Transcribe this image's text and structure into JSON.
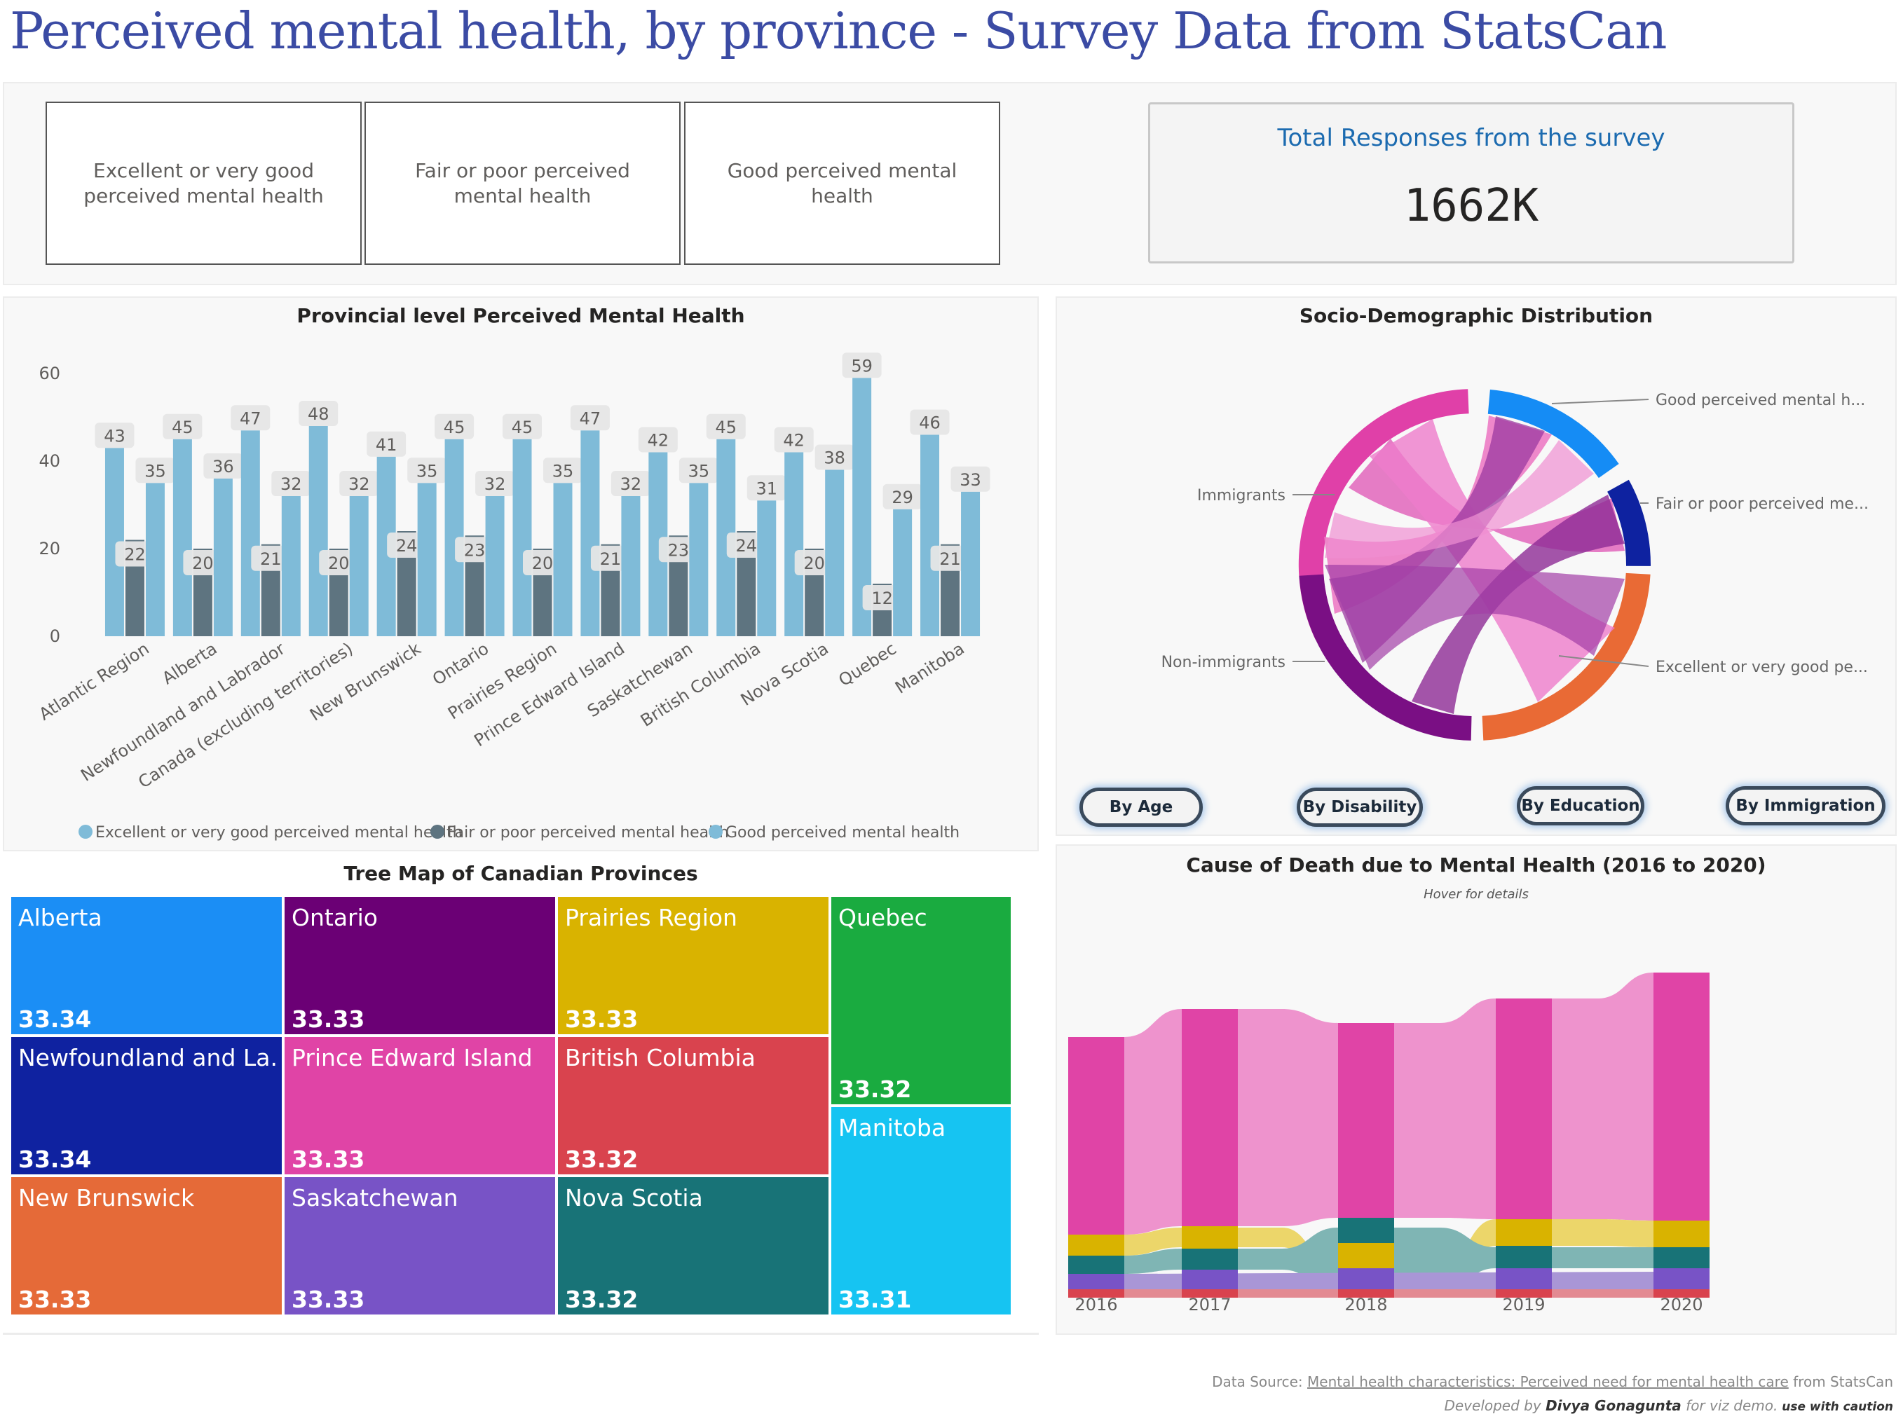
{
  "header": {
    "title": "Perceived mental health, by province - Survey Data from StatsCan"
  },
  "kpi_cards": [
    {
      "label": "Excellent or very good perceived mental health"
    },
    {
      "label": "Fair or poor perceived mental health"
    },
    {
      "label": "Good perceived mental health"
    }
  ],
  "total": {
    "label": "Total Responses from the survey",
    "value": "1662K"
  },
  "bar_chart": {
    "title": "Provincial level Perceived Mental Health",
    "legend": [
      "Excellent or very good perceived mental health",
      "Fair or poor perceived mental health",
      "Good perceived mental health"
    ],
    "colors": {
      "excellent": "#7fbbd8",
      "fair_poor": "#5e7480",
      "good": "#7fbbd8"
    }
  },
  "chart_data": [
    {
      "type": "bar",
      "title": "Provincial level Perceived Mental Health",
      "categories": [
        "Atlantic Region",
        "Alberta",
        "Newfoundland and Labrador",
        "Canada (excluding territories)",
        "New Brunswick",
        "Ontario",
        "Prairies Region",
        "Prince Edward Island",
        "Saskatchewan",
        "British Columbia",
        "Nova Scotia",
        "Quebec",
        "Manitoba"
      ],
      "series": [
        {
          "name": "Excellent or very good perceived mental health",
          "values": [
            43,
            45,
            47,
            48,
            41,
            45,
            45,
            47,
            42,
            45,
            42,
            59,
            46
          ]
        },
        {
          "name": "Fair or poor perceived mental health",
          "values": [
            22,
            20,
            21,
            20,
            24,
            23,
            20,
            21,
            23,
            24,
            20,
            12,
            21
          ]
        },
        {
          "name": "Good perceived mental health",
          "values": [
            35,
            36,
            32,
            32,
            35,
            32,
            35,
            32,
            35,
            31,
            38,
            29,
            33
          ]
        }
      ],
      "y_ticks": [
        0,
        20,
        40,
        60
      ],
      "ylim": [
        0,
        64
      ],
      "legend_position": "bottom"
    },
    {
      "type": "area",
      "title": "Cause of Death due to Mental Health (2016 to 2020)",
      "x": [
        "2016",
        "2017",
        "2018",
        "2019",
        "2020"
      ]
    }
  ],
  "sociodemographic": {
    "title": "Socio-Demographic Distribution",
    "labels": {
      "immigrants": "Immigrants",
      "non_immigrants": "Non-immigrants",
      "good": "Good perceived mental h...",
      "fair_poor": "Fair or poor perceived me...",
      "excellent": "Excellent or very good pe..."
    },
    "colors": {
      "immigrants": "#e040a8",
      "non_immigrants": "#7a0f84",
      "good": "#158cf5",
      "fair_poor": "#0e22a0",
      "excellent": "#e96a35"
    },
    "buttons": [
      "By Age",
      "By Disability",
      "By Education",
      "By Immigration"
    ]
  },
  "treemap": {
    "title": "Tree Map of Canadian Provinces",
    "cells": [
      {
        "name": "Alberta",
        "value": "33.34",
        "color": "#1b8ef5"
      },
      {
        "name": "Newfoundland and La...",
        "value": "33.34",
        "color": "#0f22a0"
      },
      {
        "name": "New Brunswick",
        "value": "33.33",
        "color": "#e56a38"
      },
      {
        "name": "Ontario",
        "value": "33.33",
        "color": "#6b0075"
      },
      {
        "name": "Prince Edward Island",
        "value": "33.33",
        "color": "#e044a6"
      },
      {
        "name": "Saskatchewan",
        "value": "33.33",
        "color": "#7853c6"
      },
      {
        "name": "Prairies Region",
        "value": "33.33",
        "color": "#d9b300"
      },
      {
        "name": "British Columbia",
        "value": "33.32",
        "color": "#d9434e"
      },
      {
        "name": "Nova Scotia",
        "value": "33.32",
        "color": "#187377"
      },
      {
        "name": "Quebec",
        "value": "33.32",
        "color": "#1aab40"
      },
      {
        "name": "Manitoba",
        "value": "33.31",
        "color": "#16c4f2"
      }
    ]
  },
  "ribbon": {
    "title": "Cause of Death due to Mental Health (2016 to 2020)",
    "subtitle": "Hover for details",
    "years": [
      "2016",
      "2017",
      "2018",
      "2019",
      "2020"
    ]
  },
  "footer": {
    "source_prefix": "Data Source: ",
    "source_link": "Mental health characteristics: Perceived need for mental health care",
    "source_suffix": " from StatsCan",
    "dev_prefix": "Developed by ",
    "dev_name": "Divya Gonagunta",
    "dev_mid": " for viz demo.",
    "dev_caution": " use with caution"
  }
}
